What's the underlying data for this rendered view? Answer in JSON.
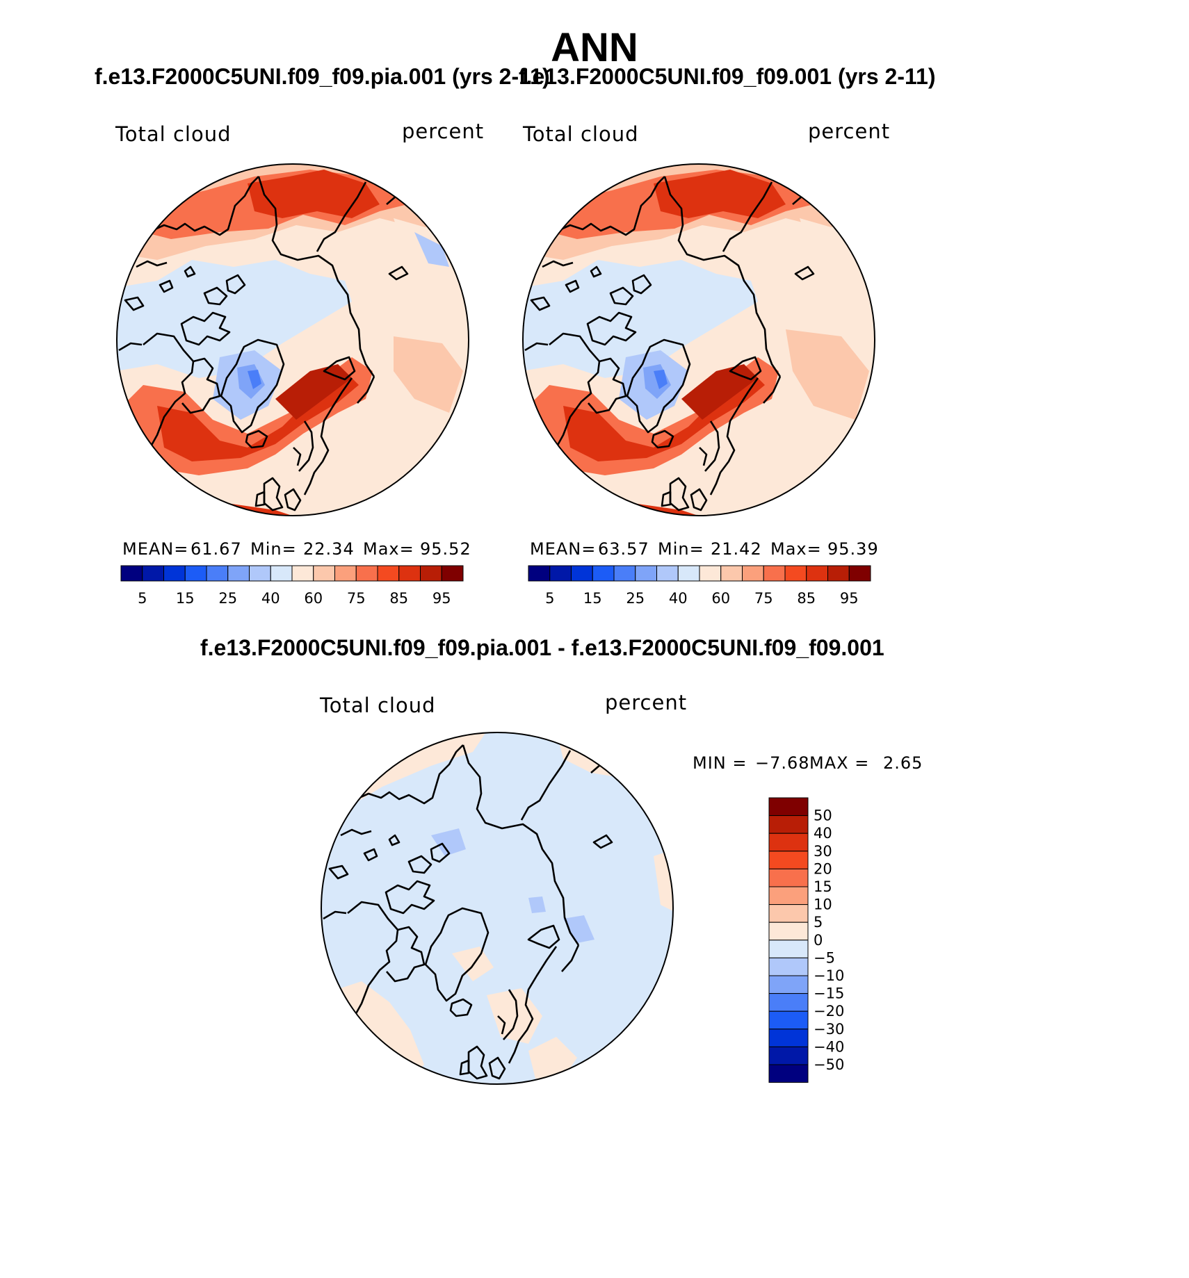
{
  "title": "ANN",
  "panels": [
    {
      "case": "f.e13.F2000C5UNI.f09_f09.pia.001 (yrs 2-11)",
      "variable": "Total cloud",
      "units": "percent",
      "mean_label": "MEAN=",
      "mean": "61.67",
      "min_label": "Min=",
      "min": "22.34",
      "max_label": "Max=",
      "max": "95.52",
      "colorbar_ticks": [
        "5",
        "15",
        "25",
        "40",
        "60",
        "75",
        "85",
        "95"
      ]
    },
    {
      "case": "f.e13.F2000C5UNI.f09_f09.001 (yrs 2-11)",
      "variable": "Total cloud",
      "units": "percent",
      "mean_label": "MEAN=",
      "mean": "63.57",
      "min_label": "Min=",
      "min": "21.42",
      "max_label": "Max=",
      "max": "95.39",
      "colorbar_ticks": [
        "5",
        "15",
        "25",
        "40",
        "60",
        "75",
        "85",
        "95"
      ]
    }
  ],
  "diff": {
    "case": "f.e13.F2000C5UNI.f09_f09.pia.001 - f.e13.F2000C5UNI.f09_f09.001",
    "variable": "Total cloud",
    "units": "percent",
    "min_label": "MIN =",
    "min": "−7.68",
    "max_label": "MAX =",
    "max": "2.65",
    "colorbar_labels": [
      "50",
      "40",
      "30",
      "20",
      "15",
      "10",
      "5",
      "0",
      "−5",
      "−10",
      "−15",
      "−20",
      "−30",
      "−40",
      "−50"
    ]
  },
  "colors": {
    "seq_palette": [
      "#00007f",
      "#0018a8",
      "#0034d8",
      "#1c5cf6",
      "#4a7ef8",
      "#7fa4f8",
      "#b0c8fa",
      "#d8e8fa",
      "#fde8d8",
      "#fcc8ac",
      "#fba07c",
      "#f8704c",
      "#f44a20",
      "#dd3210",
      "#b81e06",
      "#7f0000"
    ],
    "diff_palette": [
      "#7f0000",
      "#b81e06",
      "#dd3210",
      "#f44a20",
      "#f8704c",
      "#fba07c",
      "#fcc8ac",
      "#fde8d8",
      "#d8e8fa",
      "#b0c8fa",
      "#7fa4f8",
      "#4a7ef8",
      "#1c5cf6",
      "#0034d8",
      "#0018a8",
      "#00007f"
    ]
  }
}
